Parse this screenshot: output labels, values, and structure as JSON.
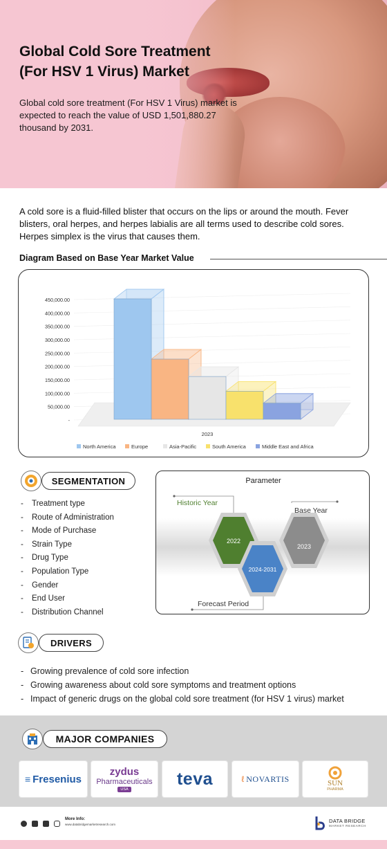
{
  "hero": {
    "title_line1": "Global Cold Sore Treatment",
    "title_line2": "(For HSV 1 Virus) Market",
    "subtitle": "Global cold sore treatment (For HSV 1 Virus) market is expected to reach the value of USD 1,501,880.27 thousand by 2031."
  },
  "intro": "A cold sore is a fluid-filled blister that occurs on the lips or around the mouth. Fever blisters, oral herpes, and herpes labialis are all terms used to describe cold sores. Herpes simplex is the virus that causes them.",
  "chart_section": {
    "heading": "Diagram Based on Base Year Market Value"
  },
  "chart_data": {
    "type": "bar",
    "categories": [
      "2023"
    ],
    "series": [
      {
        "name": "North America",
        "values": [
          450000
        ],
        "color": "#9ec7ef"
      },
      {
        "name": "Europe",
        "values": [
          225000
        ],
        "color": "#f9b583"
      },
      {
        "name": "Asia-Pacific",
        "values": [
          160000
        ],
        "color": "#e6e6e6"
      },
      {
        "name": "South America",
        "values": [
          105000
        ],
        "color": "#f8e16c"
      },
      {
        "name": "Middle East and Africa",
        "values": [
          60000
        ],
        "color": "#8aa3e0"
      }
    ],
    "yticks": [
      "450,000.00",
      "400,000.00",
      "350,000.00",
      "300,000.00",
      "250,000.00",
      "200,000.00",
      "150,000.00",
      "100,000.00",
      "50,000.00",
      "-"
    ],
    "ylim": [
      0,
      450000
    ],
    "legend_position": "bottom",
    "grid": true
  },
  "segmentation": {
    "label": "SEGMENTATION",
    "items": [
      "Treatment type",
      "Route of Administration",
      "Mode of Purchase",
      "Strain Type",
      "Drug Type",
      "Population Type",
      "Gender",
      "End User",
      "Distribution Channel"
    ]
  },
  "parameter": {
    "title": "Parameter",
    "historic_label": "Historic Year",
    "historic_value": "2022",
    "base_label": "Base Year",
    "base_value": "2023",
    "forecast_label": "Forecast Period",
    "forecast_value": "2024-2031",
    "colors": {
      "historic": "#4f7f2f",
      "forecast": "#4a83c7",
      "base": "#8c8c8c"
    }
  },
  "drivers": {
    "label": "DRIVERS",
    "items": [
      "Growing prevalence of cold sore infection",
      "Growing awareness about cold sore symptoms and treatment options",
      "Impact of generic drugs on the global cold sore treatment (for HSV 1 virus) market"
    ]
  },
  "companies": {
    "label": "MAJOR COMPANIES",
    "fresenius": "Fresenius",
    "zydus_top": "zydus",
    "zydus_name": "Pharmaceuticals",
    "zydus_badge": "USA",
    "teva": "teva",
    "novartis": "NOVARTIS",
    "sun_top": "SUN",
    "sun_bottom": "PHARMA"
  },
  "footer": {
    "more_info": "More Info:",
    "url": "www.databridgemarketresearch.com",
    "brand_top": "DATA BRIDGE",
    "brand_bottom": "MARKET RESEARCH"
  }
}
